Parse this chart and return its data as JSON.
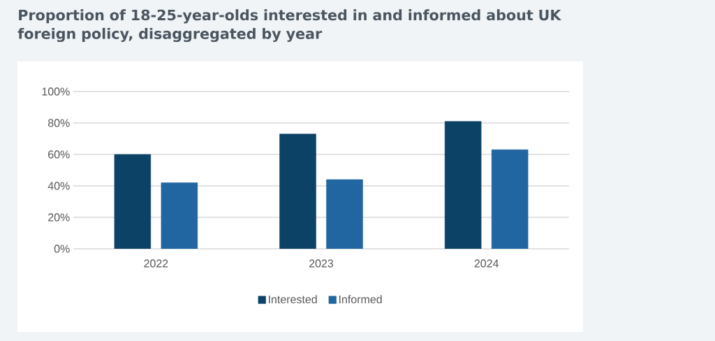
{
  "chart_data": {
    "type": "bar",
    "title": "Proportion of 18-25-year-olds interested in and informed about UK foreign policy, disaggregated by year",
    "categories": [
      "2022",
      "2023",
      "2024"
    ],
    "series": [
      {
        "name": "Interested",
        "color": "#0c4266",
        "values": [
          60,
          73,
          81
        ]
      },
      {
        "name": "Informed",
        "color": "#2166a0",
        "values": [
          42,
          44,
          63
        ]
      }
    ],
    "ylim": [
      0,
      100
    ],
    "yticks": [
      {
        "value": 0,
        "label": "0%"
      },
      {
        "value": 20,
        "label": "20%"
      },
      {
        "value": 40,
        "label": "40%"
      },
      {
        "value": 60,
        "label": "60%"
      },
      {
        "value": 80,
        "label": "80%"
      },
      {
        "value": 100,
        "label": "100%"
      }
    ],
    "grid": "y",
    "legend": "bottom"
  }
}
